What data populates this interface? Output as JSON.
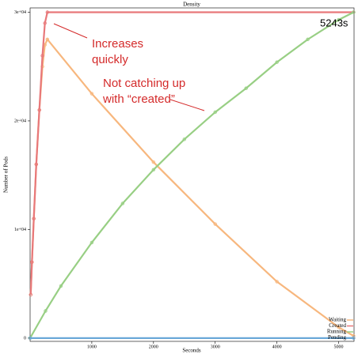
{
  "chart_data": {
    "type": "line",
    "title": "Density",
    "xlabel": "Seconds",
    "ylabel": "Number of Pods",
    "xlim": [
      0,
      5250
    ],
    "ylim": [
      -300,
      30400
    ],
    "xticks": [
      1000,
      2000,
      3000,
      4000,
      5000
    ],
    "yticks": [
      0,
      {
        "value": 10000,
        "label": "1e+04"
      },
      {
        "value": 20000,
        "label": "2e+04"
      },
      {
        "value": 30000,
        "label": "3e+04"
      }
    ],
    "legend": "bottom-right",
    "series": [
      {
        "name": "Waiting",
        "color": "#f7b77e",
        "x": [
          10,
          30,
          60,
          100,
          150,
          200,
          240,
          280,
          1000,
          2000,
          3000,
          4000,
          5000,
          5243
        ],
        "values": [
          4000,
          7000,
          11000,
          16000,
          21000,
          25000,
          27000,
          27500,
          22500,
          16200,
          10500,
          5200,
          1000,
          200
        ]
      },
      {
        "name": "Created",
        "color": "#e8787a",
        "x": [
          10,
          30,
          60,
          100,
          150,
          200,
          240,
          280,
          5243
        ],
        "values": [
          4000,
          7000,
          11000,
          16000,
          21000,
          26000,
          29000,
          30000,
          30000
        ]
      },
      {
        "name": "Running",
        "color": "#98cf84",
        "x": [
          0,
          250,
          500,
          1000,
          1500,
          2000,
          2500,
          3000,
          3500,
          4000,
          4500,
          5000,
          5243
        ],
        "values": [
          0,
          2500,
          4800,
          8800,
          12400,
          15500,
          18300,
          20800,
          23000,
          25400,
          27500,
          29300,
          30000
        ]
      },
      {
        "name": "Pending",
        "color": "#6aa8d8",
        "x": [
          0,
          5243
        ],
        "values": [
          0,
          0
        ]
      }
    ],
    "annotations": [
      {
        "text": [
          "Increases",
          "quickly"
        ]
      },
      {
        "text": [
          "Not catching up",
          "with “created”"
        ]
      },
      {
        "text": [
          "5243s"
        ]
      }
    ]
  }
}
